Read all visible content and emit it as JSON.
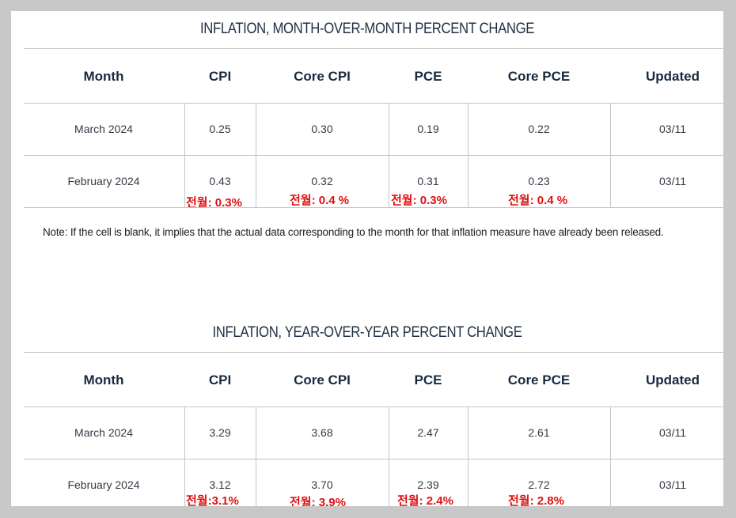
{
  "mom": {
    "title": "INFLATION, MONTH-OVER-MONTH PERCENT CHANGE",
    "headers": [
      "Month",
      "CPI",
      "Core CPI",
      "PCE",
      "Core PCE",
      "Updated"
    ],
    "rows": [
      [
        "March 2024",
        "0.25",
        "0.30",
        "0.19",
        "0.22",
        "03/11"
      ],
      [
        "February 2024",
        "0.43",
        "0.32",
        "0.31",
        "0.23",
        "03/11"
      ]
    ],
    "annotations": [
      "전월: 0.3%",
      "전월: 0.4 %",
      "전월: 0.3%",
      "전월: 0.4 %"
    ]
  },
  "note": "Note: If the cell is blank, it implies that the actual data corresponding to the month for that inflation measure have already been released.",
  "yoy": {
    "title": "INFLATION, YEAR-OVER-YEAR PERCENT CHANGE",
    "headers": [
      "Month",
      "CPI",
      "Core CPI",
      "PCE",
      "Core PCE",
      "Updated"
    ],
    "rows": [
      [
        "March 2024",
        "3.29",
        "3.68",
        "2.47",
        "2.61",
        "03/11"
      ],
      [
        "February 2024",
        "3.12",
        "3.70",
        "2.39",
        "2.72",
        "03/11"
      ]
    ],
    "annotations": [
      "전월:3.1%",
      "전월: 3.9%",
      "전월: 2.4%",
      "전월: 2.8%"
    ]
  }
}
